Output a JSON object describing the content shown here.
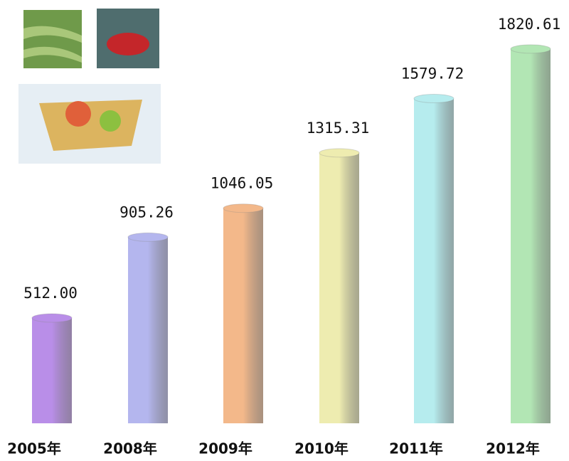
{
  "chart_data": {
    "type": "bar",
    "categories": [
      "2005年",
      "2008年",
      "2009年",
      "2010年",
      "2011年",
      "2012年"
    ],
    "values": [
      512.0,
      905.26,
      1046.05,
      1315.31,
      1579.72,
      1820.61
    ],
    "value_labels": [
      "512.00",
      "905.26",
      "1046.05",
      "1315.31",
      "1579.72",
      "1820.61"
    ],
    "colors": [
      "#b98ee8",
      "#b4b6ee",
      "#f3b88a",
      "#eeecb0",
      "#b6ecee",
      "#b2e6b4"
    ]
  }
}
